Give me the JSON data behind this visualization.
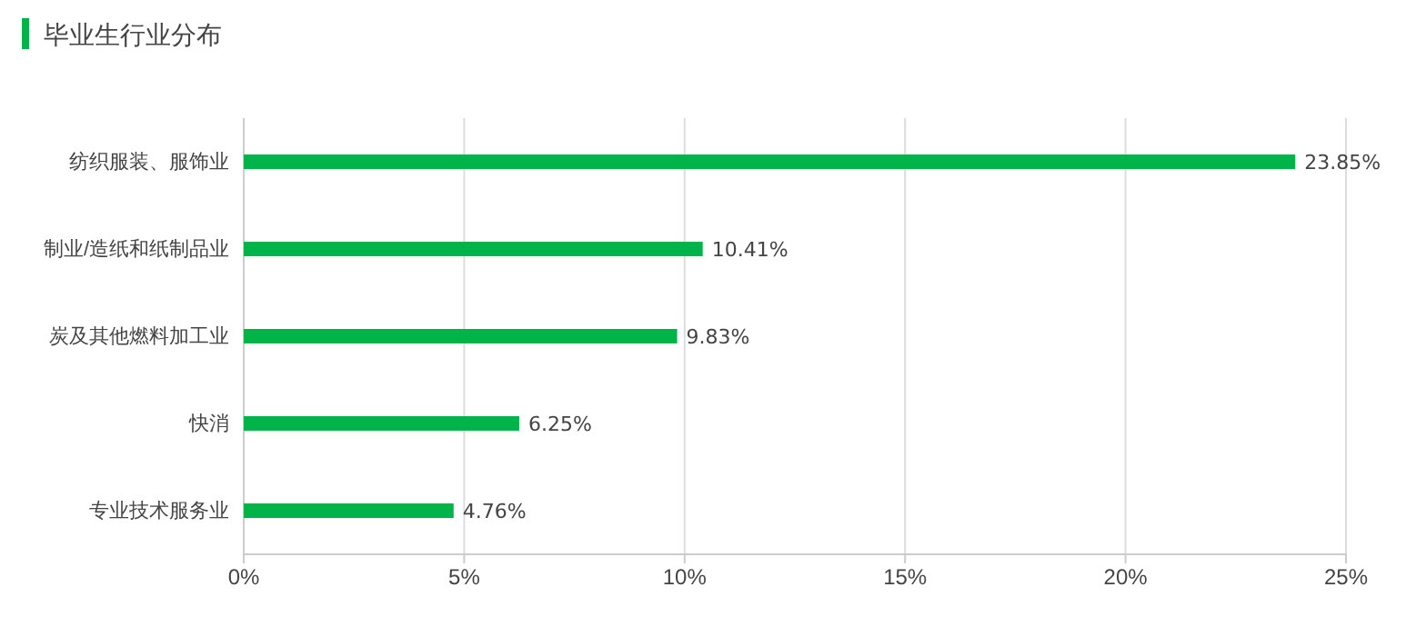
{
  "chart_data": {
    "type": "bar",
    "orientation": "horizontal",
    "title": "毕业生行业分布",
    "categories": [
      "纺织服装、服饰业",
      "制业/造纸和纸制品业",
      "炭及其他燃料加工业",
      "快消",
      "专业技术服务业"
    ],
    "values": [
      23.85,
      10.41,
      9.83,
      6.25,
      4.76
    ],
    "value_labels": [
      "23.85%",
      "10.41%",
      "9.83%",
      "6.25%",
      "4.76%"
    ],
    "color": "#00b449",
    "xlim": [
      0,
      25
    ],
    "xticks": [
      {
        "value": 0,
        "label": "0%"
      },
      {
        "value": 5,
        "label": "5%"
      },
      {
        "value": 10,
        "label": "10%"
      },
      {
        "value": 15,
        "label": "15%"
      },
      {
        "value": 20,
        "label": "20%"
      },
      {
        "value": 25,
        "label": "25%"
      }
    ],
    "grid": "x"
  }
}
